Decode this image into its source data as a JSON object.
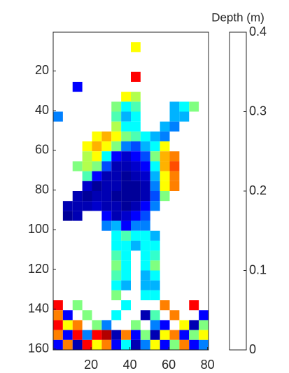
{
  "chart_data": {
    "type": "heatmap",
    "colorbar_label": "Depth (m)",
    "colormap": "jet",
    "x": [
      3,
      8,
      13,
      18,
      23,
      28,
      33,
      38,
      43,
      48,
      53,
      58,
      63,
      68,
      73,
      78
    ],
    "y": [
      3,
      8,
      13,
      18,
      23,
      28,
      33,
      38,
      43,
      48,
      53,
      58,
      63,
      68,
      73,
      78,
      83,
      88,
      93,
      98,
      103,
      108,
      113,
      118,
      123,
      128,
      133,
      138,
      143,
      148,
      153,
      158
    ],
    "z": [
      [
        null,
        null,
        null,
        null,
        null,
        null,
        null,
        null,
        null,
        null,
        null,
        null,
        null,
        null,
        null,
        null
      ],
      [
        null,
        null,
        null,
        null,
        null,
        null,
        null,
        null,
        0.25,
        null,
        null,
        null,
        null,
        null,
        null,
        null
      ],
      [
        null,
        null,
        null,
        null,
        null,
        null,
        null,
        null,
        null,
        null,
        null,
        null,
        null,
        null,
        null,
        null
      ],
      [
        null,
        null,
        null,
        null,
        null,
        null,
        null,
        null,
        null,
        null,
        null,
        null,
        null,
        null,
        null,
        null
      ],
      [
        null,
        null,
        null,
        null,
        null,
        null,
        null,
        null,
        0.35,
        null,
        null,
        null,
        null,
        null,
        null,
        null
      ],
      [
        null,
        null,
        0.05,
        null,
        null,
        null,
        null,
        null,
        null,
        null,
        null,
        null,
        null,
        null,
        null,
        null
      ],
      [
        null,
        null,
        null,
        null,
        null,
        null,
        null,
        0.25,
        0.22,
        null,
        null,
        null,
        null,
        null,
        null,
        null
      ],
      [
        null,
        null,
        null,
        null,
        null,
        null,
        0.2,
        0.15,
        0.18,
        null,
        null,
        null,
        0.12,
        0.15,
        0.2,
        null
      ],
      [
        0.1,
        null,
        null,
        null,
        null,
        null,
        0.18,
        0.12,
        0.15,
        null,
        null,
        null,
        0.12,
        0.12,
        null,
        null
      ],
      [
        null,
        null,
        null,
        null,
        null,
        null,
        0.22,
        0.15,
        0.15,
        null,
        null,
        0.12,
        0.1,
        null,
        null,
        null
      ],
      [
        null,
        null,
        null,
        null,
        0.25,
        0.28,
        0.25,
        0.2,
        0.18,
        0.15,
        0.12,
        0.1,
        null,
        null,
        null,
        null
      ],
      [
        null,
        null,
        null,
        0.25,
        0.28,
        0.25,
        0.2,
        0.1,
        0.08,
        0.12,
        0.15,
        0.25,
        null,
        null,
        null,
        null
      ],
      [
        null,
        null,
        null,
        0.22,
        0.25,
        0.15,
        0.05,
        0.03,
        0.05,
        0.08,
        0.2,
        0.28,
        0.3,
        null,
        null,
        null
      ],
      [
        null,
        null,
        0.2,
        0.22,
        0.2,
        0.08,
        0.02,
        0.02,
        0.03,
        0.05,
        0.15,
        0.28,
        0.32,
        null,
        null,
        null
      ],
      [
        null,
        null,
        null,
        0.18,
        0.05,
        0.02,
        0.02,
        0.01,
        0.02,
        0.03,
        0.12,
        0.25,
        0.3,
        null,
        null,
        null
      ],
      [
        null,
        null,
        null,
        0.03,
        0.01,
        0.02,
        0.02,
        0.01,
        0.01,
        0.02,
        0.1,
        0.25,
        0.3,
        null,
        null,
        null
      ],
      [
        null,
        null,
        0.02,
        0.01,
        0.02,
        0.02,
        0.01,
        0.01,
        0.01,
        0.02,
        0.08,
        0.2,
        null,
        null,
        null,
        null
      ],
      [
        null,
        0.02,
        0.02,
        0.02,
        0.03,
        0.02,
        0.02,
        0.01,
        0.02,
        0.05,
        0.1,
        null,
        null,
        null,
        null,
        null
      ],
      [
        null,
        0.01,
        0.02,
        null,
        null,
        0.05,
        0.02,
        0.03,
        0.05,
        0.08,
        null,
        null,
        null,
        null,
        null,
        null
      ],
      [
        null,
        null,
        null,
        null,
        null,
        0.1,
        0.12,
        0.05,
        0.1,
        0.1,
        null,
        null,
        null,
        null,
        null,
        null
      ],
      [
        null,
        null,
        null,
        null,
        null,
        null,
        0.15,
        0.18,
        0.15,
        0.15,
        0.12,
        null,
        null,
        null,
        null,
        null
      ],
      [
        null,
        null,
        null,
        null,
        null,
        null,
        0.15,
        0.15,
        0.12,
        0.15,
        0.15,
        null,
        null,
        null,
        null,
        null
      ],
      [
        null,
        null,
        null,
        null,
        null,
        null,
        0.18,
        0.15,
        null,
        0.15,
        0.17,
        null,
        null,
        null,
        null,
        null
      ],
      [
        null,
        null,
        null,
        null,
        null,
        null,
        0.2,
        0.15,
        null,
        0.15,
        0.2,
        null,
        null,
        null,
        null,
        null
      ],
      [
        null,
        null,
        null,
        null,
        null,
        null,
        0.18,
        0.15,
        null,
        0.12,
        0.15,
        null,
        null,
        null,
        null,
        null
      ],
      [
        null,
        null,
        null,
        null,
        null,
        null,
        0.15,
        0.12,
        null,
        0.12,
        0.12,
        null,
        null,
        null,
        null,
        null
      ],
      [
        null,
        null,
        null,
        null,
        null,
        null,
        0.2,
        null,
        null,
        0.15,
        0.15,
        null,
        null,
        null,
        null,
        null
      ],
      [
        0.35,
        null,
        0.2,
        null,
        null,
        null,
        null,
        0.15,
        null,
        null,
        null,
        0.3,
        null,
        null,
        0.35,
        null
      ],
      [
        0.3,
        0.05,
        null,
        0.2,
        null,
        null,
        0.15,
        null,
        null,
        0.02,
        0.18,
        null,
        0.3,
        null,
        null,
        0.05
      ],
      [
        0.35,
        0.25,
        0.3,
        null,
        0.2,
        0.1,
        null,
        null,
        0.2,
        null,
        0.1,
        0.05,
        null,
        0.25,
        0.02,
        0.2
      ],
      [
        0.3,
        0.05,
        0.35,
        0.1,
        0.35,
        0.38,
        0.02,
        0.3,
        0.05,
        0.2,
        0.02,
        0.25,
        0.3,
        0.05,
        0.2,
        0.25
      ],
      [
        0.05,
        0.3,
        0.02,
        0.35,
        0.25,
        0.3,
        0.05,
        0.15,
        0.02,
        0.1,
        0.25,
        0.05,
        0.2,
        0.3,
        0.05,
        0.1
      ]
    ],
    "xlim": [
      0.5,
      80.5
    ],
    "ylim": [
      0.5,
      160.5
    ],
    "y_reversed": true,
    "xticks": [
      20,
      40,
      60,
      80
    ],
    "yticks": [
      20,
      40,
      60,
      80,
      100,
      120,
      140,
      160
    ],
    "clim": [
      0,
      0.4
    ],
    "cticks": [
      0,
      0.1,
      0.2,
      0.3,
      0.4
    ]
  }
}
